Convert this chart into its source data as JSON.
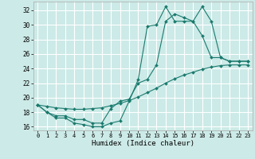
{
  "xlabel": "Humidex (Indice chaleur)",
  "bg_color": "#cceae7",
  "grid_color": "#ffffff",
  "line_color": "#1a7a6e",
  "xlim": [
    -0.5,
    23.5
  ],
  "ylim": [
    15.5,
    33.2
  ],
  "xticks": [
    0,
    1,
    2,
    3,
    4,
    5,
    6,
    7,
    8,
    9,
    10,
    11,
    12,
    13,
    14,
    15,
    16,
    17,
    18,
    19,
    20,
    21,
    22,
    23
  ],
  "yticks": [
    16,
    18,
    20,
    22,
    24,
    26,
    28,
    30,
    32
  ],
  "curve1_x": [
    0,
    1,
    2,
    3,
    4,
    5,
    6,
    7,
    8,
    9,
    10,
    11,
    12,
    13,
    14,
    15,
    16,
    17,
    18,
    19,
    20,
    21,
    22,
    23
  ],
  "curve1_y": [
    19.0,
    18.0,
    17.2,
    17.2,
    16.5,
    16.3,
    16.0,
    16.0,
    16.5,
    16.8,
    19.5,
    22.5,
    29.8,
    30.0,
    32.5,
    30.5,
    30.5,
    30.5,
    32.5,
    30.5,
    25.5,
    25.0,
    25.0,
    25.0
  ],
  "curve2_x": [
    0,
    1,
    2,
    3,
    4,
    5,
    6,
    7,
    8,
    9,
    10,
    11,
    12,
    13,
    14,
    15,
    16,
    17,
    18,
    19,
    20,
    21,
    22,
    23
  ],
  "curve2_y": [
    19.0,
    18.0,
    17.5,
    17.5,
    17.0,
    17.0,
    16.5,
    16.5,
    18.5,
    19.5,
    19.8,
    22.0,
    22.5,
    24.5,
    30.5,
    31.5,
    31.0,
    30.5,
    28.5,
    25.5,
    25.5,
    25.0,
    25.0,
    25.0
  ],
  "curve3_x": [
    0,
    1,
    2,
    3,
    4,
    5,
    6,
    7,
    8,
    9,
    10,
    11,
    12,
    13,
    14,
    15,
    16,
    17,
    18,
    19,
    20,
    21,
    22,
    23
  ],
  "curve3_y": [
    19.0,
    18.8,
    18.6,
    18.5,
    18.4,
    18.4,
    18.5,
    18.6,
    18.9,
    19.2,
    19.6,
    20.1,
    20.7,
    21.3,
    22.0,
    22.6,
    23.1,
    23.5,
    23.9,
    24.2,
    24.4,
    24.5,
    24.5,
    24.5
  ]
}
